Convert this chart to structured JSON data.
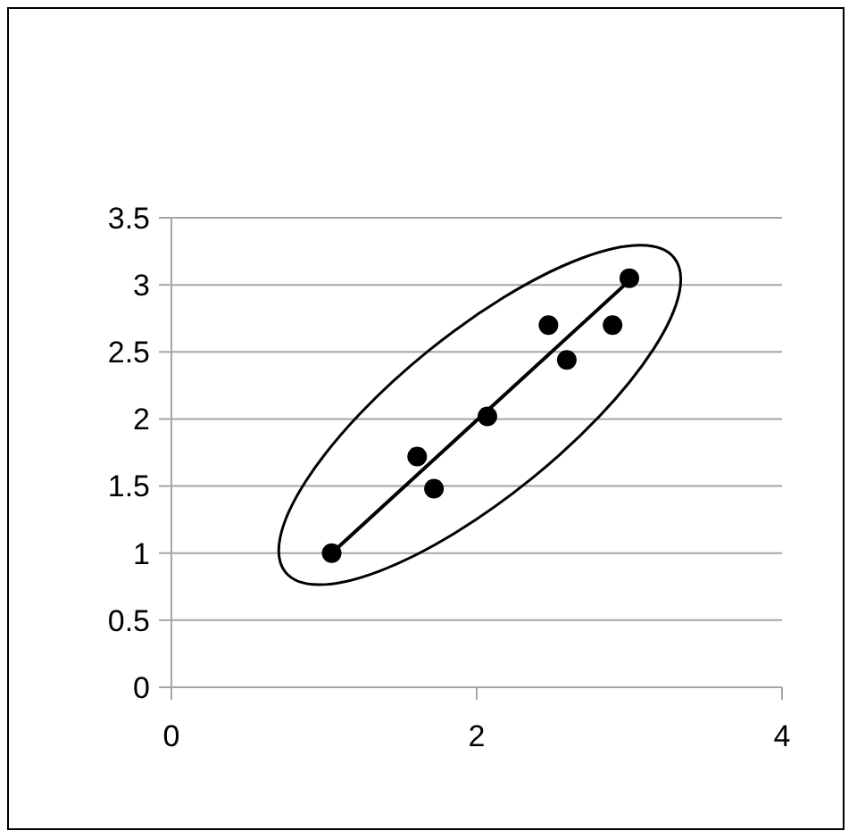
{
  "chart_data": {
    "type": "scatter",
    "xlim": [
      0,
      4
    ],
    "xticks": [
      0,
      2,
      4
    ],
    "ylim": [
      0,
      3.5
    ],
    "yticks": [
      0,
      0.5,
      1,
      1.5,
      2,
      2.5,
      3,
      3.5
    ],
    "grid": "y",
    "marker": "circle",
    "series": [
      {
        "color": "#000000",
        "x": [
          1.05,
          1.61,
          1.72,
          2.07,
          2.47,
          2.59,
          2.89,
          3.0
        ],
        "values": [
          1.0,
          1.72,
          1.48,
          2.02,
          2.7,
          2.44,
          2.7,
          3.05
        ]
      },
      {
        "type": "line",
        "color": "#000000",
        "marker": "none",
        "line_style": "solid",
        "x": [
          1.05,
          2.97
        ],
        "values": [
          1.0,
          3.0
        ]
      }
    ]
  }
}
